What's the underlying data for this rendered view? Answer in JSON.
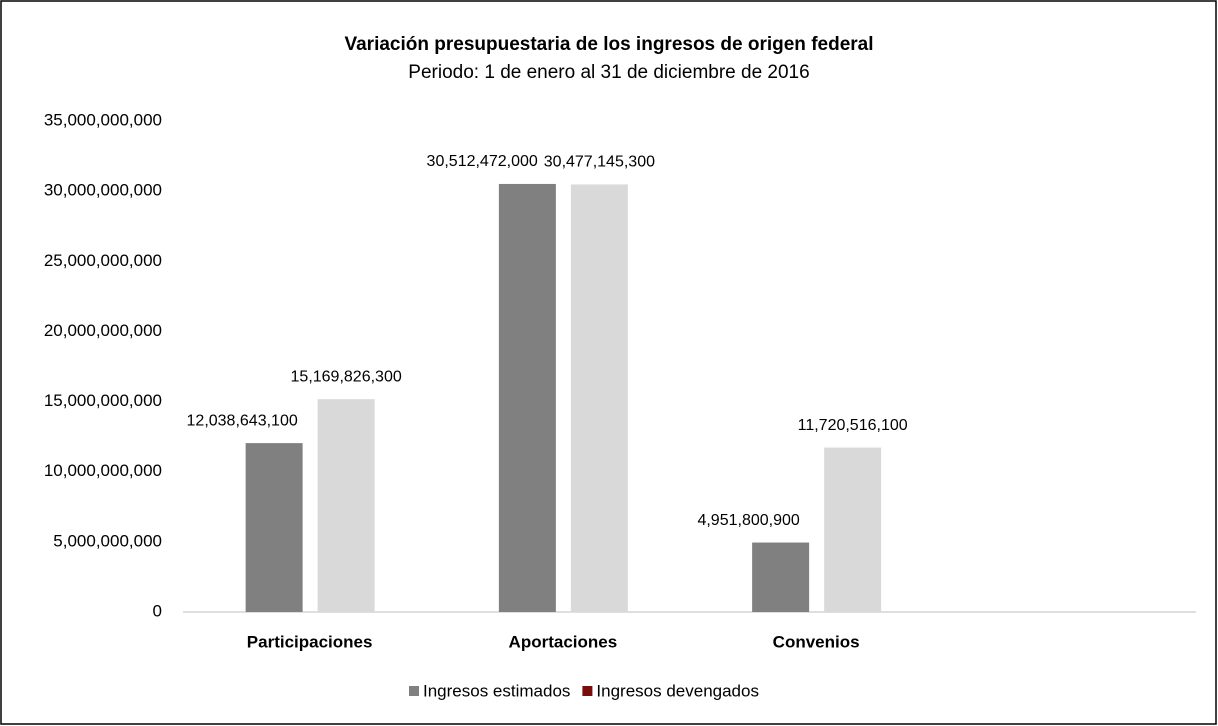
{
  "chart_data": {
    "type": "bar",
    "title": "Variación presupuestaria de los ingresos de origen federal",
    "subtitle": "Periodo:  1 de enero al 31 de diciembre de 2016",
    "categories": [
      "Participaciones",
      "Aportaciones",
      "Convenios",
      null
    ],
    "series": [
      {
        "name": "Ingresos estimados",
        "color": "#808080",
        "legend_color": "#808080",
        "values": [
          12038643100,
          30512472000,
          4951800900,
          null
        ],
        "value_labels": [
          "12,038,643,100",
          "30,512,472,000",
          "4,951,800,900",
          null
        ]
      },
      {
        "name": "Ingresos devengados",
        "color": "#d9d9d9",
        "legend_color": "#7b0c0c",
        "values": [
          15169826300,
          30477145300,
          11720516100,
          null
        ],
        "value_labels": [
          "15,169,826,300",
          "30,477,145,300",
          "11,720,516,100",
          null
        ]
      }
    ],
    "ylim": [
      0,
      35000000000
    ],
    "yticks": [
      0,
      {
        "value": 5000000000,
        "label": "5,000,000,000"
      },
      {
        "value": 10000000000,
        "label": "10,000,000,000"
      },
      {
        "value": 15000000000,
        "label": "15,000,000,000"
      },
      {
        "value": 20000000000,
        "label": "20,000,000,000"
      },
      {
        "value": 25000000000,
        "label": "25,000,000,000"
      },
      {
        "value": 30000000000,
        "label": "30,000,000,000"
      },
      {
        "value": 35000000000,
        "label": "35,000,000,000"
      }
    ],
    "grid": false,
    "legend": "bottom"
  }
}
